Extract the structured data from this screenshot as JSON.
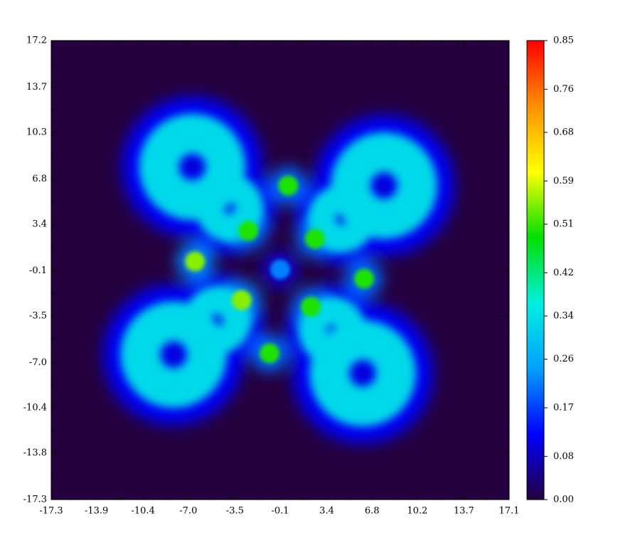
{
  "chart_data": {
    "type": "heatmap",
    "xlim": [
      -17.3,
      17.1
    ],
    "xticks": [
      -17.3,
      -13.9,
      -10.4,
      {
        "value": -7,
        "label": "-7.0"
      },
      -3.5,
      -0.1,
      3.4,
      6.8,
      10.2,
      13.7,
      17.1
    ],
    "ylim": [
      -17.3,
      17.2
    ],
    "yticks": [
      -17.3,
      -13.8,
      -10.4,
      {
        "value": -7,
        "label": "-7.0"
      },
      -3.5,
      -0.1,
      3.4,
      6.8,
      10.3,
      13.7,
      17.2
    ],
    "zlim": [
      0,
      0.85
    ],
    "zticks": [
      {
        "value": 0,
        "label": "0.00"
      },
      0.08,
      0.17,
      0.26,
      0.34,
      0.42,
      0.51,
      0.59,
      0.68,
      0.76,
      0.85
    ],
    "colormap": [
      "#24003f",
      "#0000ff",
      "#00a0ff",
      "#00f0e0",
      "#00e000",
      "#ffff00",
      "#ff9000",
      "#ff0000"
    ],
    "rings": [
      {
        "x": -6.7,
        "y": 7.7,
        "radius": 2.5,
        "value": 0.33
      },
      {
        "x": 7.7,
        "y": 6.3,
        "radius": 2.5,
        "value": 0.33
      },
      {
        "x": -8.1,
        "y": -6.4,
        "radius": 2.5,
        "value": 0.33
      },
      {
        "x": 6.1,
        "y": -7.8,
        "radius": 2.5,
        "value": 0.33
      },
      {
        "x": -3.9,
        "y": 4.6,
        "radius": 1.5,
        "value": 0.33
      },
      {
        "x": 4.5,
        "y": 3.8,
        "radius": 1.5,
        "value": 0.33
      },
      {
        "x": -4.8,
        "y": -3.8,
        "radius": 1.5,
        "value": 0.33
      },
      {
        "x": 3.8,
        "y": -4.6,
        "radius": 1.5,
        "value": 0.33
      }
    ],
    "peaks": [
      {
        "x": 0.5,
        "y": 6.3,
        "value": 0.5
      },
      {
        "x": -2.5,
        "y": 2.9,
        "value": 0.5
      },
      {
        "x": 2.5,
        "y": 2.3,
        "value": 0.5
      },
      {
        "x": -6.5,
        "y": 0.6,
        "value": 0.55
      },
      {
        "x": 6.2,
        "y": -0.7,
        "value": 0.5
      },
      {
        "x": -3.0,
        "y": -2.3,
        "value": 0.55
      },
      {
        "x": 2.2,
        "y": -2.8,
        "value": 0.5
      },
      {
        "x": -0.9,
        "y": -6.3,
        "value": 0.5
      },
      {
        "x": -0.1,
        "y": 0.0,
        "value": 0.22
      }
    ]
  }
}
